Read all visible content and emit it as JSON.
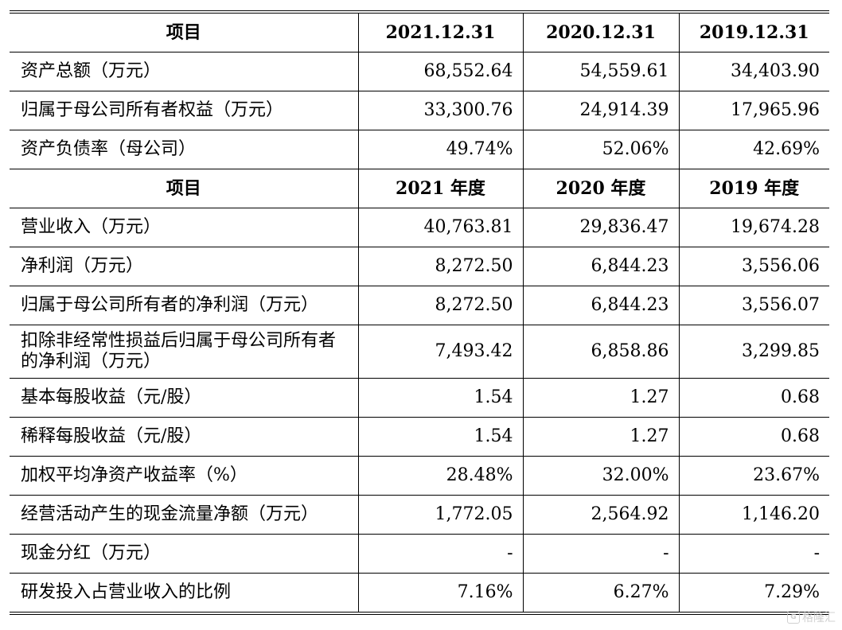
{
  "table": {
    "header1": [
      "项目",
      "2021.12.31",
      "2020.12.31",
      "2019.12.31"
    ],
    "rows1": [
      {
        "label": "资产总额（万元）",
        "v2021": "68,552.64",
        "v2020": "54,559.61",
        "v2019": "34,403.90"
      },
      {
        "label": "归属于母公司所有者权益（万元）",
        "v2021": "33,300.76",
        "v2020": "24,914.39",
        "v2019": "17,965.96"
      },
      {
        "label": "资产负债率（母公司）",
        "v2021": "49.74%",
        "v2020": "52.06%",
        "v2019": "42.69%"
      }
    ],
    "header2": [
      "项目",
      "2021 年度",
      "2020 年度",
      "2019 年度"
    ],
    "rows2": [
      {
        "label": "营业收入（万元）",
        "v2021": "40,763.81",
        "v2020": "29,836.47",
        "v2019": "19,674.28"
      },
      {
        "label": "净利润（万元）",
        "v2021": "8,272.50",
        "v2020": "6,844.23",
        "v2019": "3,556.06"
      },
      {
        "label": "归属于母公司所有者的净利润（万元）",
        "v2021": "8,272.50",
        "v2020": "6,844.23",
        "v2019": "3,556.07"
      },
      {
        "label": "扣除非经常性损益后归属于母公司所有者的净利润（万元）",
        "v2021": "7,493.42",
        "v2020": "6,858.86",
        "v2019": "3,299.85"
      },
      {
        "label": "基本每股收益（元/股）",
        "v2021": "1.54",
        "v2020": "1.27",
        "v2019": "0.68"
      },
      {
        "label": "稀释每股收益（元/股）",
        "v2021": "1.54",
        "v2020": "1.27",
        "v2019": "0.68"
      },
      {
        "label": "加权平均净资产收益率（%）",
        "v2021": "28.48%",
        "v2020": "32.00%",
        "v2019": "23.67%"
      },
      {
        "label": "经营活动产生的现金流量净额（万元）",
        "v2021": "1,772.05",
        "v2020": "2,564.92",
        "v2019": "1,146.20"
      },
      {
        "label": "现金分红（万元）",
        "v2021": "-",
        "v2020": "-",
        "v2019": "-"
      },
      {
        "label": "研发投入占营业收入的比例",
        "v2021": "7.16%",
        "v2020": "6.27%",
        "v2019": "7.29%"
      }
    ]
  },
  "watermark": {
    "text": "格隆汇",
    "logo_glyph": "G"
  }
}
